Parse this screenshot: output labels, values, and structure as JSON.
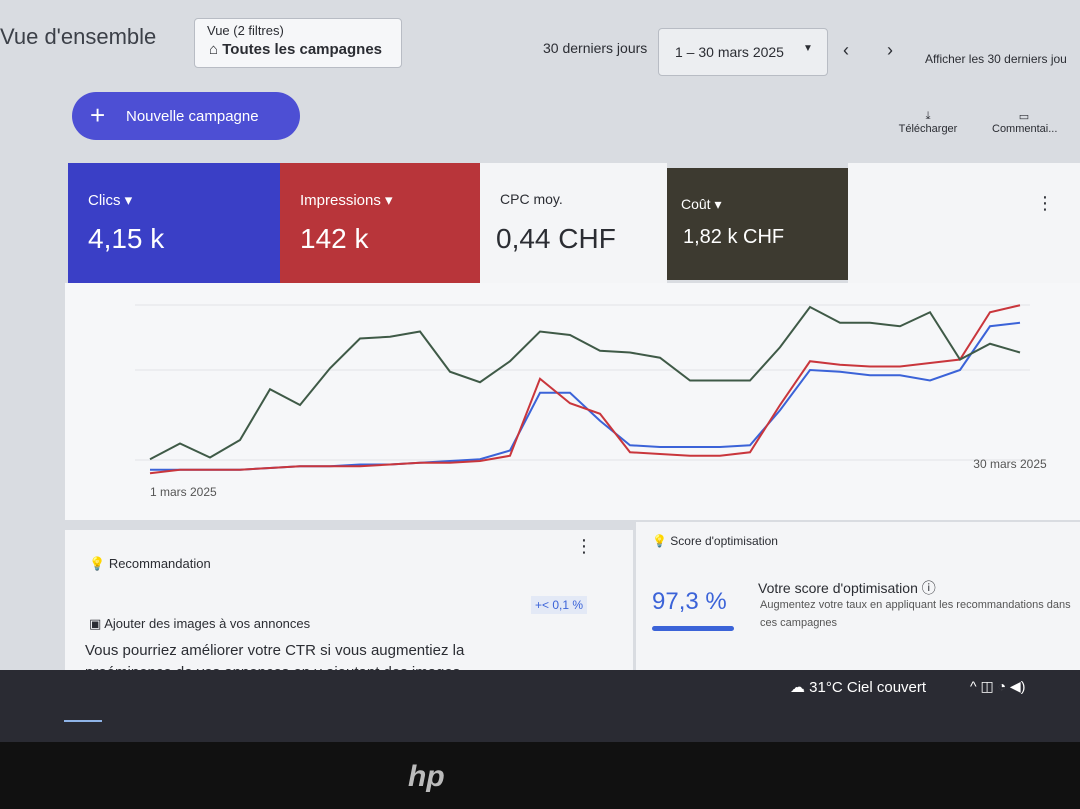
{
  "header": {
    "title": "Vue d'ensemble",
    "filter_label": "Vue (2 filtres)",
    "filter_value": "Toutes les campagnes",
    "period": "30 derniers jours",
    "date_range": "1 – 30 mars 2025",
    "show_more": "Afficher les 30 derniers jou"
  },
  "new_campaign": "Nouvelle campagne",
  "actions": [
    "Télécharger",
    "Commentai..."
  ],
  "metrics": {
    "values": [
      "4,15 k",
      "142 k",
      "0,44 CHF",
      "1,82 k CHF"
    ],
    "cpc_label": "CPC moy."
  },
  "chart_data": {
    "type": "line",
    "categories": [
      "1 mars 2025",
      null,
      null,
      null,
      null,
      null,
      null,
      null,
      null,
      null,
      null,
      null,
      null,
      null,
      null,
      null,
      null,
      null,
      null,
      null,
      null,
      null,
      null,
      null,
      null,
      null,
      null,
      null,
      null,
      "30 mars 2025"
    ],
    "ylim": [
      0,
      100
    ],
    "series": [
      {
        "name": "Clics",
        "color": "#3b63d8",
        "values": [
          3,
          3,
          3,
          3,
          4,
          5,
          5,
          6,
          6,
          7,
          8,
          9,
          14,
          47,
          47,
          31,
          17,
          16,
          16,
          16,
          17,
          37,
          60,
          59,
          57,
          57,
          54,
          60,
          85,
          87
        ]
      },
      {
        "name": "Impressions",
        "color": "#c9363c",
        "values": [
          1,
          3,
          3,
          3,
          4,
          5,
          5,
          5,
          6,
          7,
          7,
          8,
          11,
          55,
          41,
          35,
          13,
          12,
          11,
          11,
          13,
          40,
          65,
          63,
          62,
          62,
          64,
          66,
          93,
          97
        ]
      },
      {
        "name": "Coût",
        "color": "#3f5a47",
        "values": [
          9,
          18,
          10,
          20,
          49,
          40,
          61,
          78,
          79,
          82,
          59,
          53,
          65,
          82,
          80,
          71,
          70,
          67,
          54,
          54,
          54,
          73,
          96,
          87,
          87,
          85,
          93,
          66,
          75,
          70
        ]
      }
    ]
  },
  "recommendation": {
    "title": "Recommandation",
    "item": "Ajouter des images à vos annonces",
    "uplift": "+< 0,1 %",
    "body": "Vous pourriez améliorer votre CTR si vous augmentiez la proéminence de vos annonces en y ajoutant des images"
  },
  "optimization": {
    "title": "Score d'optimisation",
    "score": "97,3 %",
    "heading": "Votre score d'optimisation",
    "description": "Augmentez votre taux en appliquant les recommandations dans ces campagnes"
  },
  "taskbar": {
    "weather": "31°C Ciel couvert"
  },
  "bezel": {
    "logo": "hp"
  }
}
